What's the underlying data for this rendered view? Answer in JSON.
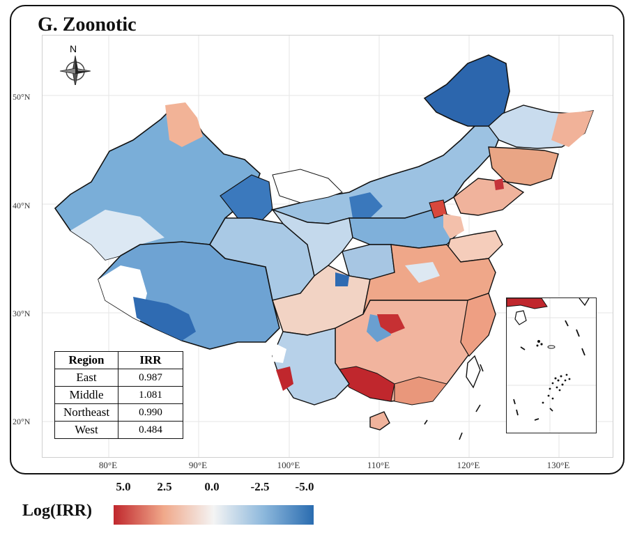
{
  "title": "G. Zoonotic",
  "compass_label": "N",
  "lat_labels": [
    "50°N",
    "40°N",
    "30°N",
    "20°N"
  ],
  "lon_labels": [
    "80°E",
    "90°E",
    "100°E",
    "110°E",
    "120°E",
    "130°E"
  ],
  "table": {
    "headers": [
      "Region",
      "IRR"
    ],
    "rows": [
      {
        "region": "East",
        "irr": "0.987"
      },
      {
        "region": "Middle",
        "irr": "1.081"
      },
      {
        "region": "Northeast",
        "irr": "0.990"
      },
      {
        "region": "West",
        "irr": "0.484"
      }
    ]
  },
  "legend": {
    "title": "Log(IRR)",
    "ticks": [
      "5.0",
      "2.5",
      "0.0",
      "-2.5",
      "-5.0"
    ],
    "colors": [
      "#c0272d",
      "#f0a88a",
      "#f4f4f4",
      "#8db8dc",
      "#2a6cb0"
    ]
  },
  "colors": {
    "strong_positive": "#c0272d",
    "positive": "#eea487",
    "neutral": "#eef2f6",
    "negative": "#8eb9dd",
    "strong_negative": "#2f70b4"
  }
}
